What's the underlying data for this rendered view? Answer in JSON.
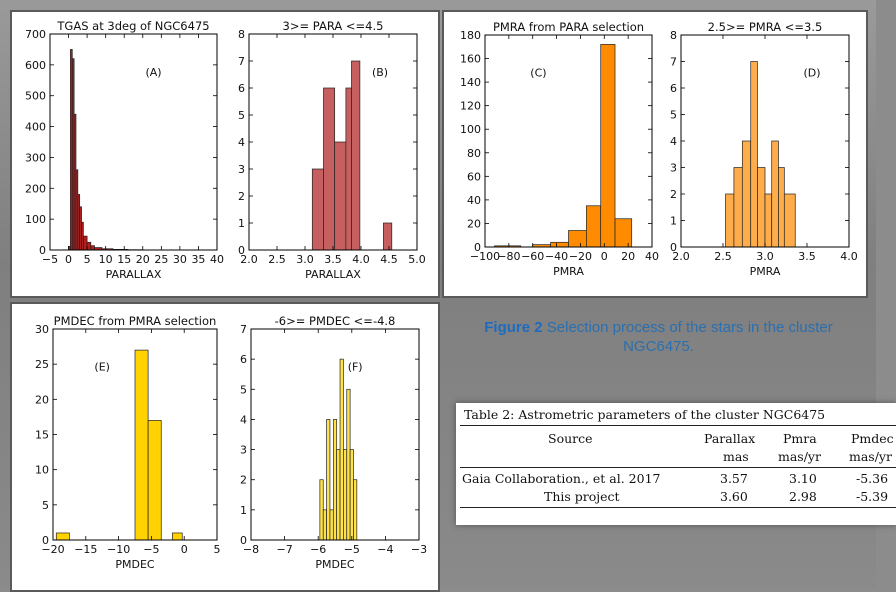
{
  "caption": {
    "label": "Figure 2",
    "text": "Selection process of the stars in the cluster NGC6475."
  },
  "table": {
    "title": "Table 2: Astrometric parameters of the cluster NGC6475",
    "headers": [
      {
        "name": "Source",
        "unit": ""
      },
      {
        "name": "Parallax",
        "unit": "mas"
      },
      {
        "name": "Pmra",
        "unit": "mas/yr"
      },
      {
        "name": "Pmdec",
        "unit": "mas/yr"
      }
    ],
    "rows": [
      [
        "Gaia Collaboration., et al. 2017",
        "3.57",
        "3.10",
        "-5.36"
      ],
      [
        "This project",
        "3.60",
        "2.98",
        "-5.39"
      ]
    ]
  },
  "colors": {
    "dark_red": "#b01e1e",
    "rose": "#c65f5f",
    "orange": "#ff8c00",
    "light_orange": "#ffad4a",
    "gold": "#ffd200",
    "light_yellow": "#ffe24a"
  },
  "chart_data": [
    {
      "type": "histogram",
      "title": "TGAS at 3deg of NGC6475",
      "xlabel": "PARALLAX",
      "ylabel": "",
      "annotation": "(A)",
      "xlim": [
        -5,
        40
      ],
      "ylim": [
        0,
        700
      ],
      "xticks": [
        -5,
        0,
        5,
        10,
        15,
        20,
        25,
        30,
        35,
        40
      ],
      "yticks": [
        0,
        100,
        200,
        300,
        400,
        500,
        600,
        700
      ],
      "color": "#b01e1e",
      "fill_opacity": 1,
      "bins": [
        [
          0,
          0.5,
          12
        ],
        [
          0.5,
          1,
          650
        ],
        [
          1,
          1.5,
          620
        ],
        [
          1.5,
          2,
          440
        ],
        [
          2,
          2.5,
          260
        ],
        [
          2.5,
          3,
          180
        ],
        [
          3,
          3.5,
          140
        ],
        [
          3.5,
          4,
          90
        ],
        [
          4,
          5,
          45
        ],
        [
          5,
          6,
          25
        ],
        [
          6,
          7,
          14
        ],
        [
          7,
          9,
          8
        ],
        [
          9,
          12,
          4
        ],
        [
          12,
          16,
          2
        ],
        [
          16,
          20,
          1
        ]
      ]
    },
    {
      "type": "histogram",
      "title": "3>= PARA <=4.5",
      "xlabel": "PARALLAX",
      "ylabel": "",
      "annotation": "(B)",
      "xlim": [
        2.0,
        5.0
      ],
      "ylim": [
        0,
        8
      ],
      "xticks": [
        2.0,
        2.5,
        3.0,
        3.5,
        4.0,
        4.5,
        5.0
      ],
      "yticks": [
        0,
        1,
        2,
        3,
        4,
        5,
        6,
        7,
        8
      ],
      "color": "#c65f5f",
      "fill_opacity": 1,
      "bins": [
        [
          3.13,
          3.33,
          3
        ],
        [
          3.33,
          3.53,
          6
        ],
        [
          3.53,
          3.73,
          4
        ],
        [
          3.73,
          3.83,
          6
        ],
        [
          3.83,
          3.98,
          7
        ],
        [
          3.98,
          4.4,
          0
        ],
        [
          4.4,
          4.55,
          1
        ]
      ]
    },
    {
      "type": "histogram",
      "title": "PMRA from PARA selection",
      "xlabel": "PMRA",
      "ylabel": "",
      "annotation": "(C)",
      "xlim": [
        -100,
        40
      ],
      "ylim": [
        0,
        180
      ],
      "xticks": [
        -100,
        -80,
        -60,
        -40,
        -20,
        0,
        20,
        40
      ],
      "yticks": [
        0,
        20,
        40,
        60,
        80,
        100,
        120,
        140,
        160,
        180
      ],
      "color": "#ff8c00",
      "fill_opacity": 1,
      "bins": [
        [
          -92,
          -80,
          1
        ],
        [
          -80,
          -70,
          1
        ],
        [
          -70,
          -60,
          0
        ],
        [
          -60,
          -45,
          2
        ],
        [
          -45,
          -30,
          4
        ],
        [
          -30,
          -15,
          14
        ],
        [
          -15,
          -3,
          35
        ],
        [
          -3,
          9,
          172
        ],
        [
          9,
          23,
          24
        ],
        [
          23,
          30,
          0
        ]
      ]
    },
    {
      "type": "histogram",
      "title": "2.5>= PMRA <=3.5",
      "xlabel": "PMRA",
      "ylabel": "",
      "annotation": "(D)",
      "xlim": [
        2.0,
        4.0
      ],
      "ylim": [
        0,
        8
      ],
      "xticks": [
        2.0,
        2.5,
        3.0,
        3.5,
        4.0
      ],
      "yticks": [
        0,
        1,
        2,
        3,
        4,
        5,
        6,
        7,
        8
      ],
      "color": "#ffad4a",
      "fill_opacity": 1,
      "bins": [
        [
          2.53,
          2.63,
          2
        ],
        [
          2.63,
          2.73,
          3
        ],
        [
          2.73,
          2.83,
          4
        ],
        [
          2.83,
          2.91,
          7
        ],
        [
          2.91,
          3.0,
          3
        ],
        [
          3.0,
          3.08,
          2
        ],
        [
          3.08,
          3.16,
          4
        ],
        [
          3.16,
          3.23,
          3
        ],
        [
          3.23,
          3.36,
          2
        ]
      ]
    },
    {
      "type": "histogram",
      "title": "PMDEC from PMRA selection",
      "xlabel": "PMDEC",
      "ylabel": "",
      "annotation": "(E)",
      "xlim": [
        -20,
        5
      ],
      "ylim": [
        0,
        30
      ],
      "xticks": [
        -20,
        -15,
        -10,
        -5,
        0,
        5
      ],
      "yticks": [
        0,
        5,
        10,
        15,
        20,
        25,
        30
      ],
      "color": "#ffd200",
      "fill_opacity": 1,
      "bins": [
        [
          -19.5,
          -17.5,
          1
        ],
        [
          -17.5,
          -7.5,
          0
        ],
        [
          -7.5,
          -5.5,
          27
        ],
        [
          -5.5,
          -3.5,
          17
        ],
        [
          -3.5,
          -1.8,
          0
        ],
        [
          -1.8,
          -0.3,
          1
        ]
      ]
    },
    {
      "type": "histogram",
      "title": "-6>= PMDEC <=-4.8",
      "xlabel": "PMDEC",
      "ylabel": "",
      "annotation": "(F)",
      "xlim": [
        -8,
        -3
      ],
      "ylim": [
        0,
        7
      ],
      "xticks": [
        -8,
        -7,
        -6,
        -5,
        -4,
        -3
      ],
      "yticks": [
        0,
        1,
        2,
        3,
        4,
        5,
        6,
        7
      ],
      "color": "#ffe24a",
      "fill_opacity": 1,
      "bins": [
        [
          -5.95,
          -5.85,
          2
        ],
        [
          -5.85,
          -5.75,
          1
        ],
        [
          -5.75,
          -5.65,
          4
        ],
        [
          -5.65,
          -5.55,
          1
        ],
        [
          -5.55,
          -5.45,
          4
        ],
        [
          -5.45,
          -5.35,
          3
        ],
        [
          -5.35,
          -5.25,
          6
        ],
        [
          -5.25,
          -5.15,
          3
        ],
        [
          -5.15,
          -5.05,
          5
        ],
        [
          -5.05,
          -4.95,
          3
        ],
        [
          -4.95,
          -4.85,
          2
        ]
      ]
    }
  ]
}
